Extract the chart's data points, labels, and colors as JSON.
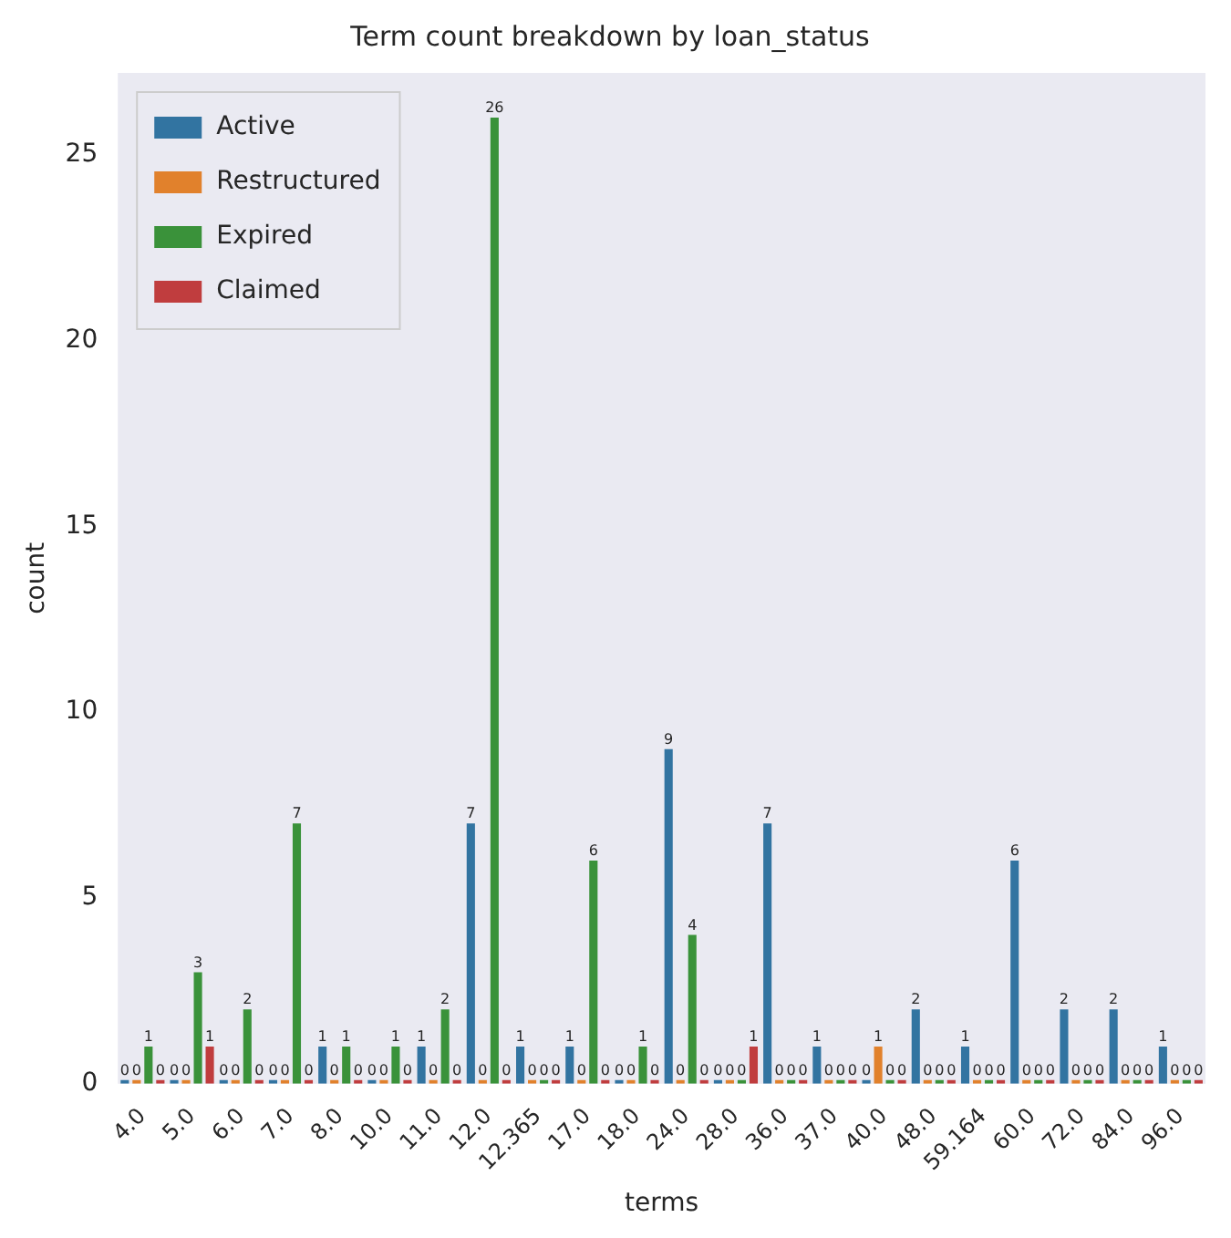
{
  "chart_data": {
    "type": "bar",
    "title": "Term count breakdown by loan_status",
    "xlabel": "terms",
    "ylabel": "count",
    "categories": [
      "4.0",
      "5.0",
      "6.0",
      "7.0",
      "8.0",
      "10.0",
      "11.0",
      "12.0",
      "12.365",
      "17.0",
      "18.0",
      "24.0",
      "28.0",
      "36.0",
      "37.0",
      "40.0",
      "48.0",
      "59.164",
      "60.0",
      "72.0",
      "84.0",
      "96.0"
    ],
    "series": [
      {
        "name": "Active",
        "color": "#3274a1",
        "values": [
          0,
          0,
          0,
          0,
          1,
          0,
          1,
          7,
          1,
          1,
          0,
          9,
          0,
          7,
          1,
          0,
          2,
          1,
          6,
          2,
          2,
          1
        ]
      },
      {
        "name": "Restructured",
        "color": "#e1812c",
        "values": [
          0,
          0,
          0,
          0,
          0,
          0,
          0,
          0,
          0,
          0,
          0,
          0,
          0,
          0,
          0,
          1,
          0,
          0,
          0,
          0,
          0,
          0
        ]
      },
      {
        "name": "Expired",
        "color": "#3a923a",
        "values": [
          1,
          3,
          2,
          7,
          1,
          1,
          2,
          26,
          0,
          6,
          1,
          4,
          0,
          0,
          0,
          0,
          0,
          0,
          0,
          0,
          0,
          0
        ]
      },
      {
        "name": "Claimed",
        "color": "#c03d3e",
        "values": [
          0,
          1,
          0,
          0,
          0,
          0,
          0,
          0,
          0,
          0,
          0,
          0,
          1,
          0,
          0,
          0,
          0,
          0,
          0,
          0,
          0,
          0
        ]
      }
    ],
    "ylim": [
      0,
      27.2
    ],
    "yticks": [
      0,
      5,
      10,
      15,
      20,
      25
    ],
    "grid": false,
    "legend": "top left",
    "data_labels": true
  }
}
